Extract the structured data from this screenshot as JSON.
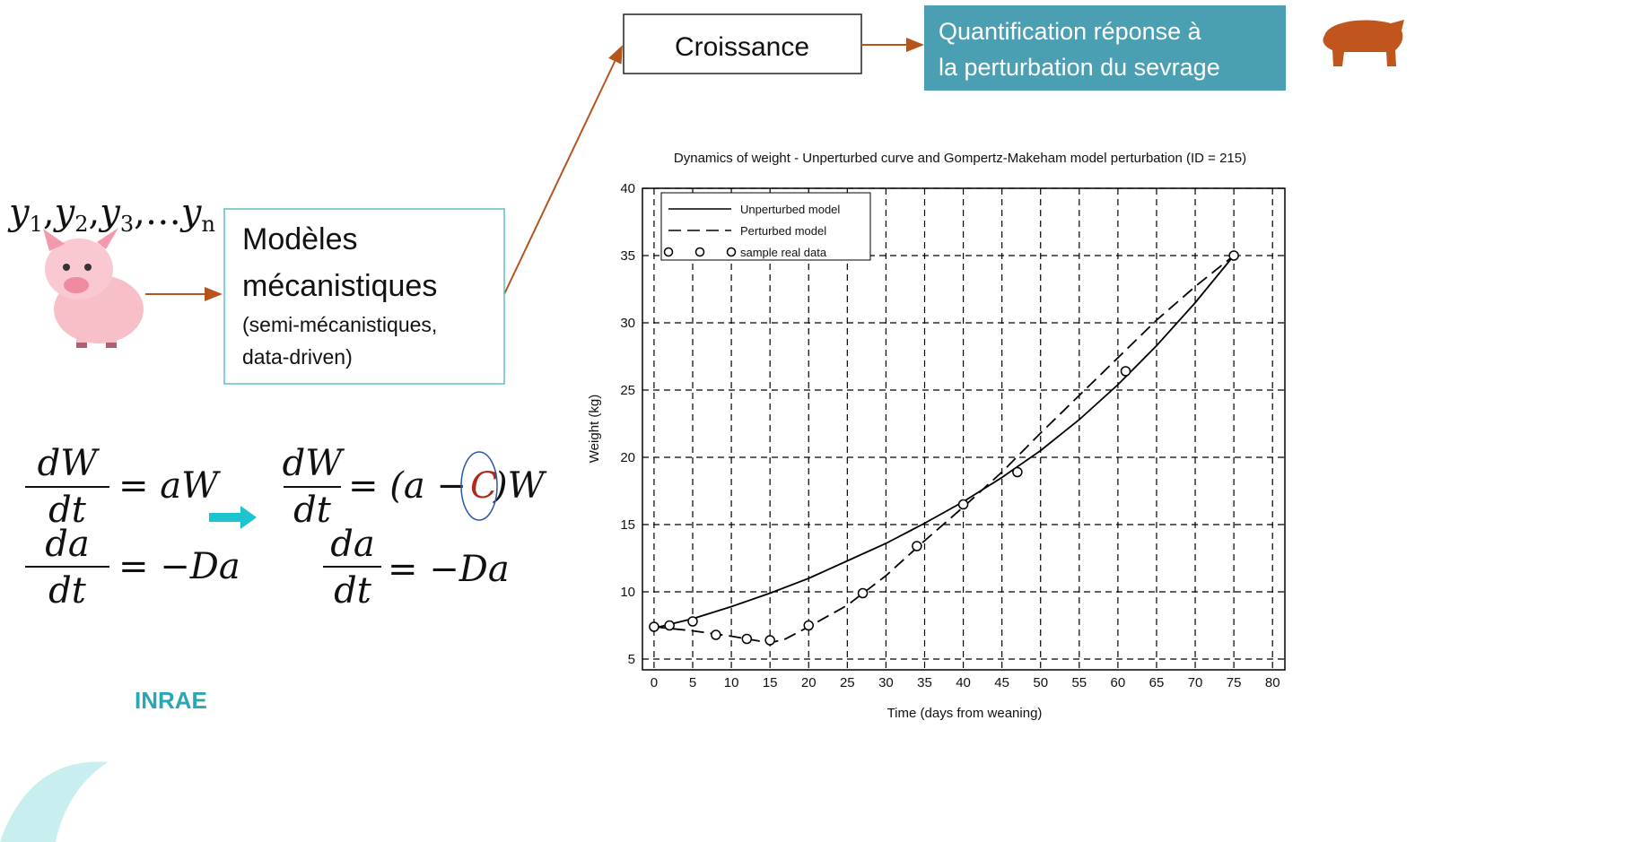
{
  "slide": {
    "growth_box": "Croissance",
    "result_box": [
      "Quantification réponse à",
      "la perturbation du sevrage"
    ],
    "sequence": [
      {
        "base": "y",
        "sub": "1",
        "after": ","
      },
      {
        "base": "y",
        "sub": "2",
        "after": ","
      },
      {
        "base": "y",
        "sub": "3",
        "after": ","
      },
      {
        "before": "…",
        "base": "y",
        "sub": "n"
      }
    ],
    "model_box": {
      "title": [
        "Modèles",
        "mécanistiques"
      ],
      "subtitle": [
        "(semi-mécanistiques,",
        "data-driven)"
      ]
    },
    "left_equations": [
      {
        "num": "dW",
        "den": "dt",
        "rhs": "= aW"
      },
      {
        "num": "da",
        "den": "dt",
        "rhs": "= −Da"
      }
    ],
    "right_equations": [
      {
        "num": "dW",
        "den": "dt",
        "rhs": "= (a −",
        "highlight": "C",
        "rest": ")W"
      },
      {
        "num": "da",
        "den": "dt",
        "rhs": "= −Da"
      }
    ],
    "logo": "INRAE"
  },
  "chart_data": {
    "type": "line",
    "title": "Dynamics of weight - Unperturbed curve and Gompertz-Makeham model perturbation (ID = 215)",
    "x_label": "Time (days from weaning)",
    "y_label": "Weight (kg)",
    "xlim": [
      -1.5,
      81.6
    ],
    "ylim": [
      4.2,
      40
    ],
    "xticks": [
      0,
      5,
      10,
      15,
      20,
      25,
      30,
      35,
      40,
      45,
      50,
      55,
      60,
      65,
      70,
      75,
      80
    ],
    "yticks": [
      5,
      10,
      15,
      20,
      25,
      30,
      35,
      40
    ],
    "grid": true,
    "legend": "top-left",
    "series": [
      {
        "name": "Unperturbed model",
        "style": "solid",
        "color": "#000000",
        "x": [
          0,
          5,
          10,
          15,
          20,
          25,
          30,
          35,
          40,
          45,
          50,
          55,
          60,
          65,
          70,
          75
        ],
        "values": [
          7.3,
          8.0,
          8.9,
          9.9,
          11.0,
          12.3,
          13.6,
          15.1,
          16.7,
          18.5,
          20.5,
          22.8,
          25.4,
          28.3,
          31.5,
          35
        ]
      },
      {
        "name": "Perturbed model",
        "style": "dashed",
        "color": "#000000",
        "x": [
          0,
          5,
          10,
          15,
          17,
          20,
          25,
          30,
          35,
          40,
          45,
          50,
          55,
          60,
          65,
          70,
          75
        ],
        "values": [
          7.4,
          7.1,
          6.7,
          6.2,
          6.5,
          7.4,
          9.0,
          11.2,
          13.8,
          16.3,
          18.9,
          21.8,
          24.6,
          27.4,
          30.2,
          32.7,
          35
        ]
      },
      {
        "name": "sample real data",
        "style": "markers",
        "color": "#000000",
        "x": [
          0,
          2,
          5,
          8,
          12,
          15,
          20,
          27,
          34,
          40,
          47,
          61,
          75
        ],
        "values": [
          7.4,
          7.5,
          7.8,
          6.8,
          6.5,
          6.4,
          7.5,
          9.9,
          13.4,
          16.5,
          18.9,
          26.4,
          35
        ]
      }
    ]
  }
}
